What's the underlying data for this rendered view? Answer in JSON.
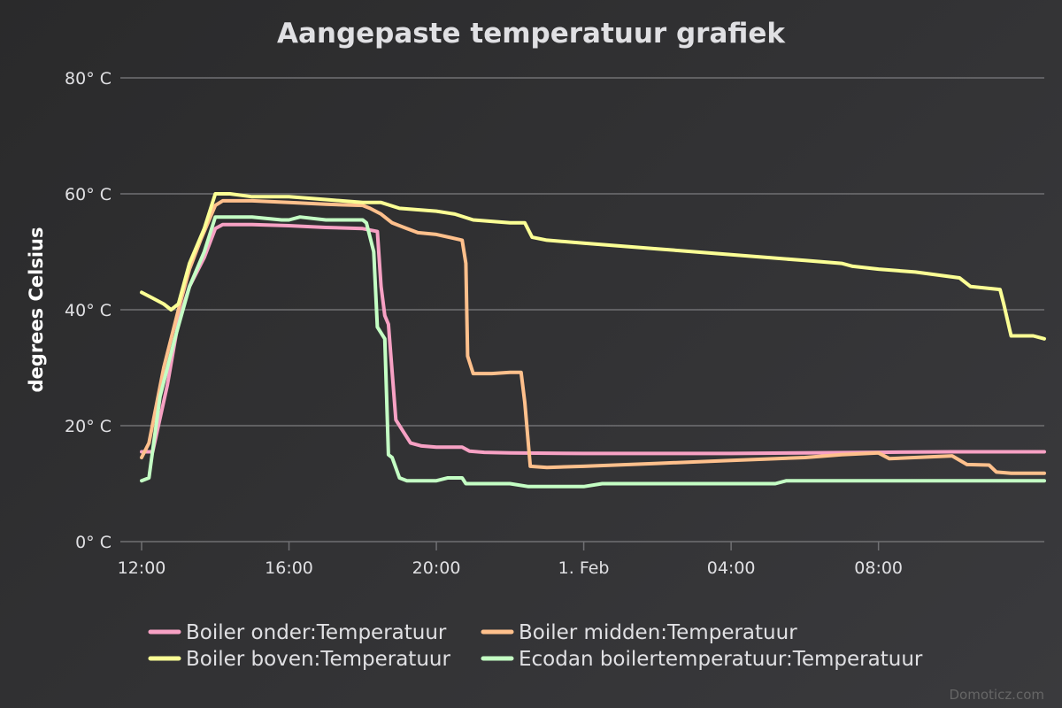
{
  "chart_data": {
    "type": "line",
    "title": "Aangepaste temperatuur grafiek",
    "ylabel": "degrees Celsius",
    "ylim": [
      0,
      80
    ],
    "yticks": [
      0,
      20,
      40,
      60,
      80
    ],
    "ytick_labels": [
      "0° C",
      "20° C",
      "40° C",
      "60° C",
      "80° C"
    ],
    "xlim": [
      12.0,
      36.5
    ],
    "xticks": [
      12,
      16,
      20,
      24,
      28,
      32
    ],
    "xtick_labels": [
      "12:00",
      "16:00",
      "20:00",
      "1. Feb",
      "04:00",
      "08:00"
    ],
    "x_unit": "hours from 31 Jan 00:00",
    "grid": true,
    "legend_position": "bottom-center",
    "series": [
      {
        "name": "Boiler onder:Temperatuur",
        "color": "#f7a1c4",
        "x": [
          12.0,
          12.3,
          12.7,
          13.0,
          13.3,
          13.7,
          14.0,
          14.2,
          15.0,
          16.0,
          17.0,
          18.0,
          18.4,
          18.5,
          18.6,
          18.7,
          18.9,
          19.1,
          19.3,
          19.6,
          20.0,
          20.7,
          20.9,
          21.3,
          22.0,
          24.0,
          28.0,
          32.0,
          34.0,
          36.5
        ],
        "y": [
          15.5,
          15.5,
          27.0,
          38.0,
          44.0,
          49.0,
          54.0,
          54.7,
          54.7,
          54.5,
          54.2,
          54.0,
          53.5,
          44.0,
          39.0,
          37.5,
          21.0,
          19.0,
          17.0,
          16.5,
          16.3,
          16.3,
          15.6,
          15.4,
          15.3,
          15.2,
          15.2,
          15.4,
          15.5,
          15.5
        ]
      },
      {
        "name": "Boiler midden:Temperatuur",
        "color": "#ffc08c",
        "x": [
          12.0,
          12.2,
          12.6,
          13.0,
          13.3,
          13.6,
          14.0,
          14.2,
          15.0,
          16.0,
          17.0,
          18.0,
          18.2,
          18.5,
          18.8,
          19.2,
          19.5,
          20.0,
          20.7,
          20.8,
          20.85,
          21.0,
          21.5,
          22.0,
          22.3,
          22.4,
          22.55,
          23.0,
          24.0,
          26.0,
          28.0,
          30.0,
          31.0,
          32.0,
          32.3,
          34.0,
          34.4,
          35.0,
          35.2,
          35.6,
          36.5
        ],
        "y": [
          14.5,
          17.0,
          30.0,
          40.0,
          47.0,
          52.0,
          58.0,
          58.8,
          58.8,
          58.5,
          58.2,
          58.0,
          57.5,
          56.5,
          55.0,
          54.0,
          53.3,
          53.0,
          52.0,
          48.0,
          32.0,
          29.0,
          29.0,
          29.2,
          29.2,
          24.0,
          13.0,
          12.8,
          13.0,
          13.5,
          14.0,
          14.5,
          15.0,
          15.3,
          14.3,
          14.8,
          13.3,
          13.2,
          12.0,
          11.8,
          11.8
        ]
      },
      {
        "name": "Boiler boven:Temperatuur",
        "color": "#fbff95",
        "x": [
          12.0,
          12.3,
          12.6,
          12.8,
          13.0,
          13.3,
          13.7,
          14.0,
          14.4,
          15.0,
          16.0,
          17.0,
          18.0,
          18.5,
          19.0,
          20.0,
          20.5,
          21.0,
          22.0,
          22.4,
          22.6,
          23.0,
          24.0,
          25.0,
          26.0,
          27.0,
          28.0,
          29.0,
          30.0,
          31.0,
          31.3,
          32.0,
          33.0,
          34.2,
          34.5,
          35.3,
          35.4,
          35.6,
          36.2,
          36.5
        ],
        "y": [
          43.0,
          42.0,
          41.0,
          40.0,
          41.0,
          48.0,
          54.0,
          60.0,
          60.0,
          59.5,
          59.5,
          59.0,
          58.5,
          58.5,
          57.5,
          57.0,
          56.5,
          55.5,
          55.0,
          55.0,
          52.5,
          52.0,
          51.5,
          51.0,
          50.5,
          50.0,
          49.5,
          49.0,
          48.5,
          48.0,
          47.5,
          47.0,
          46.5,
          45.5,
          44.0,
          43.5,
          41.0,
          35.5,
          35.5,
          35.0
        ]
      },
      {
        "name": "Ecodan boilertemperatuur:Temperatuur",
        "color": "#c4ffc4",
        "x": [
          12.0,
          12.2,
          12.5,
          12.9,
          13.3,
          13.7,
          14.0,
          14.4,
          15.0,
          15.8,
          16.0,
          16.3,
          17.0,
          18.0,
          18.1,
          18.3,
          18.4,
          18.6,
          18.7,
          18.8,
          19.0,
          19.2,
          19.6,
          20.0,
          20.3,
          20.7,
          20.8,
          21.5,
          22.0,
          22.5,
          24.0,
          24.5,
          25.0,
          26.0,
          28.0,
          29.2,
          29.5,
          30.0,
          32.0,
          34.0,
          36.5
        ],
        "y": [
          10.5,
          11.0,
          25.0,
          35.0,
          44.0,
          50.0,
          56.0,
          56.0,
          56.0,
          55.5,
          55.5,
          56.0,
          55.5,
          55.5,
          55.0,
          50.0,
          37.0,
          35.0,
          15.0,
          14.5,
          11.0,
          10.5,
          10.5,
          10.5,
          11.0,
          11.0,
          10.0,
          10.0,
          10.0,
          9.5,
          9.5,
          10.0,
          10.0,
          10.0,
          10.0,
          10.0,
          10.5,
          10.5,
          10.5,
          10.5,
          10.5
        ]
      }
    ]
  },
  "credits": "Domoticz.com"
}
